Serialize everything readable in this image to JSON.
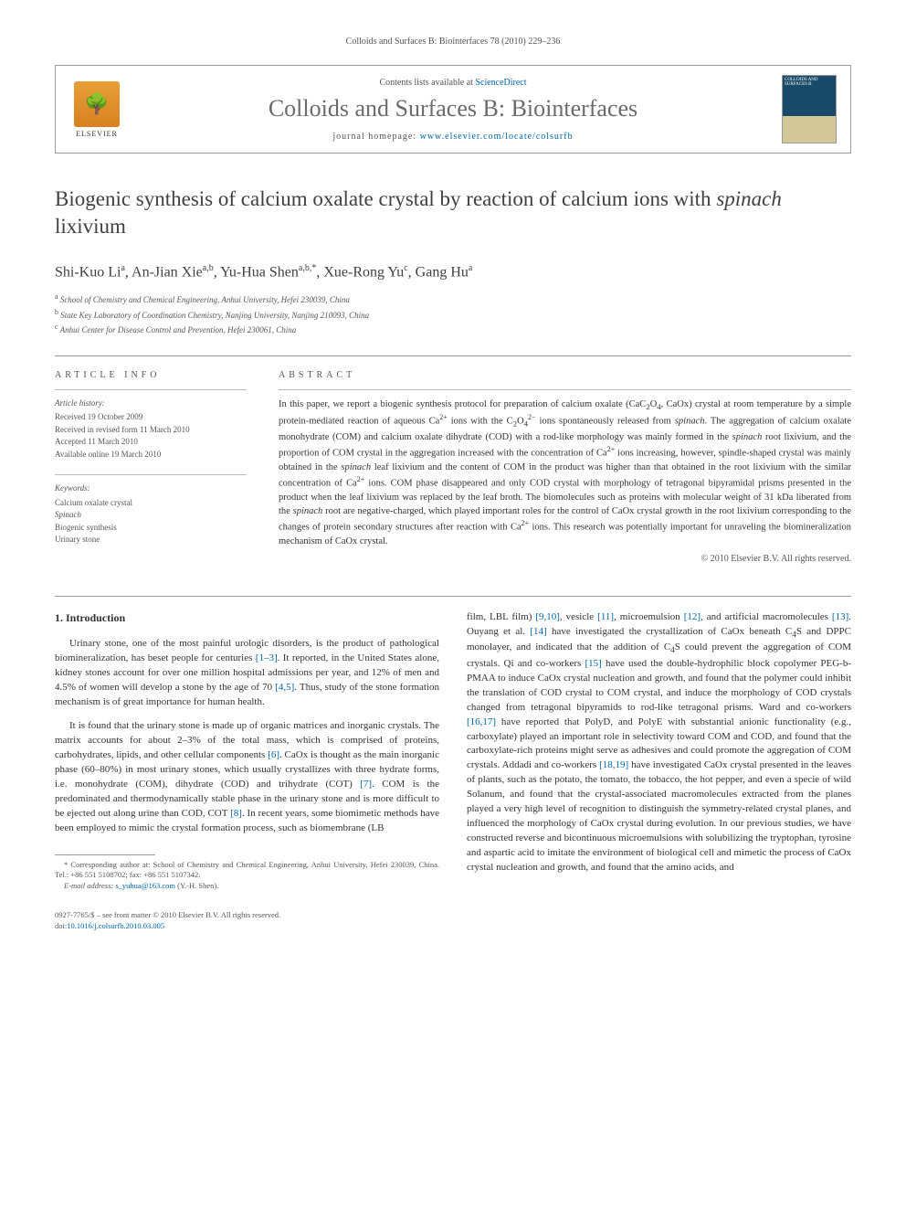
{
  "journal_ref": "Colloids and Surfaces B: Biointerfaces 78 (2010) 229–236",
  "header": {
    "contents_prefix": "Contents lists available at ",
    "contents_link": "ScienceDirect",
    "journal_name": "Colloids and Surfaces B: Biointerfaces",
    "homepage_prefix": "journal homepage: ",
    "homepage_url": "www.elsevier.com/locate/colsurfb",
    "elsevier_label": "ELSEVIER",
    "cover_text": "COLLOIDS AND SURFACES B"
  },
  "title_part1": "Biogenic synthesis of calcium oxalate crystal by reaction of calcium ions with ",
  "title_italic": "spinach",
  "title_part2": " lixivium",
  "authors_html": "Shi-Kuo Li<sup>a</sup>, An-Jian Xie<sup>a,b</sup>, Yu-Hua Shen<sup>a,b,*</sup>, Xue-Rong Yu<sup>c</sup>, Gang Hu<sup>a</sup>",
  "affiliations": [
    {
      "sup": "a",
      "text": "School of Chemistry and Chemical Engineering, Anhui University, Hefei 230039, China"
    },
    {
      "sup": "b",
      "text": "State Key Laboratory of Coordination Chemistry, Nanjing University, Nanjing 210093, China"
    },
    {
      "sup": "c",
      "text": "Anhui Center for Disease Control and Prevention, Hefei 230061, China"
    }
  ],
  "info": {
    "label_article_info": "article info",
    "history_label": "Article history:",
    "history": [
      "Received 19 October 2009",
      "Received in revised form 11 March 2010",
      "Accepted 11 March 2010",
      "Available online 19 March 2010"
    ],
    "keywords_label": "Keywords:",
    "keywords": [
      "Calcium oxalate crystal",
      "Spinach",
      "Biogenic synthesis",
      "Urinary stone"
    ]
  },
  "abstract": {
    "label": "abstract",
    "text_html": "In this paper, we report a biogenic synthesis protocol for preparation of calcium oxalate (CaC<sub>2</sub>O<sub>4</sub>, CaOx) crystal at room temperature by a simple protein-mediated reaction of aqueous Ca<sup>2+</sup> ions with the C<sub>2</sub>O<sub>4</sub><sup>2−</sup> ions spontaneously released from <i>spinach</i>. The aggregation of calcium oxalate monohydrate (COM) and calcium oxalate dihydrate (COD) with a rod-like morphology was mainly formed in the <i>spinach</i> root lixivium, and the proportion of COM crystal in the aggregation increased with the concentration of Ca<sup>2+</sup> ions increasing, however, spindle-shaped crystal was mainly obtained in the <i>spinach</i> leaf lixivium and the content of COM in the product was higher than that obtained in the root lixivium with the similar concentration of Ca<sup>2+</sup> ions. COM phase disappeared and only COD crystal with morphology of tetragonal bipyramidal prisms presented in the product when the leaf lixivium was replaced by the leaf broth. The biomolecules such as proteins with molecular weight of 31 kDa liberated from the <i>spinach</i> root are negative-charged, which played important roles for the control of CaOx crystal growth in the root lixivium corresponding to the changes of protein secondary structures after reaction with Ca<sup>2+</sup> ions. This research was potentially important for unraveling the biomineralization mechanism of CaOx crystal.",
    "copyright": "© 2010 Elsevier B.V. All rights reserved."
  },
  "body": {
    "section_heading": "1. Introduction",
    "col1": {
      "p1_html": "Urinary stone, one of the most painful urologic disorders, is the product of pathological biomineralization, has beset people for centuries <a class='ref' href='#'>[1–3]</a>. It reported, in the United States alone, kidney stones account for over one million hospital admissions per year, and 12% of men and 4.5% of women will develop a stone by the age of 70 <a class='ref' href='#'>[4,5]</a>. Thus, study of the stone formation mechanism is of great importance for human health.",
      "p2_html": "It is found that the urinary stone is made up of organic matrices and inorganic crystals. The matrix accounts for about 2–3% of the total mass, which is comprised of proteins, carbohydrates, lipids, and other cellular components <a class='ref' href='#'>[6]</a>. CaOx is thought as the main inorganic phase (60–80%) in most urinary stones, which usually crystallizes with three hydrate forms, i.e. monohydrate (COM), dihydrate (COD) and trihydrate (COT) <a class='ref' href='#'>[7]</a>. COM is the predominated and thermodynamically stable phase in the urinary stone and is more difficult to be ejected out along urine than COD, COT <a class='ref' href='#'>[8]</a>. In recent years, some biomimetic methods have been employed to mimic the crystal formation process, such as biomembrane (LB"
    },
    "col2": {
      "p1_html": "film, LBL film) <a class='ref' href='#'>[9,10]</a>, vesicle <a class='ref' href='#'>[11]</a>, microemulsion <a class='ref' href='#'>[12]</a>, and artificial macromolecules <a class='ref' href='#'>[13]</a>. Ouyang et al. <a class='ref' href='#'>[14]</a> have investigated the crystallization of CaOx beneath C<sub>4</sub>S and DPPC monolayer, and indicated that the addition of C<sub>4</sub>S could prevent the aggregation of COM crystals. Qi and co-workers <a class='ref' href='#'>[15]</a> have used the double-hydrophilic block copolymer PEG-b-PMAA to induce CaOx crystal nucleation and growth, and found that the polymer could inhibit the translation of COD crystal to COM crystal, and induce the morphology of COD crystals changed from tetragonal bipyramids to rod-like tetragonal prisms. Ward and co-workers <a class='ref' href='#'>[16,17]</a> have reported that PolyD, and PolyE with substantial anionic functionality (e.g., carboxylate) played an important role in selectivity toward COM and COD, and found that the carboxylate-rich proteins might serve as adhesives and could promote the aggregation of COM crystals. Addadi and co-workers <a class='ref' href='#'>[18,19]</a> have investigated CaOx crystal presented in the leaves of plants, such as the potato, the tomato, the tobacco, the hot pepper, and even a specie of wild Solanum, and found that the crystal-associated macromolecules extracted from the planes played a very high level of recognition to distinguish the symmetry-related crystal planes, and influenced the morphology of CaOx crystal during evolution. In our previous studies, we have constructed reverse and bicontinuous microemulsions with solubilizing the tryptophan, tyrosine and aspartic acid to imitate the environment of biological cell and mimetic the process of CaOx crystal nucleation and growth, and found that the amino acids, and"
    }
  },
  "footnote": {
    "text_html": "* Corresponding author at: School of Chemistry and Chemical Engineering, Anhui University, Hefei 230039, China. Tel.: +86 551 5108702; fax: +86 551 5107342.",
    "email_label": "E-mail address:",
    "email": "s_yuhua@163.com",
    "email_suffix": "(Y.-H. Shen)."
  },
  "footer": {
    "line1": "0927-7765/$ – see front matter © 2010 Elsevier B.V. All rights reserved.",
    "doi_label": "doi:",
    "doi": "10.1016/j.colsurfb.2010.03.005"
  },
  "colors": {
    "link": "#0066aa",
    "text": "#333333",
    "muted": "#555555",
    "rule": "#999999"
  }
}
